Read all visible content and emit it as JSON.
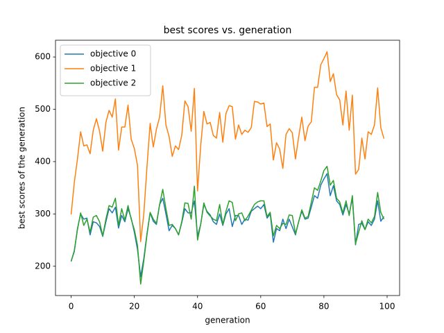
{
  "chart_data": {
    "type": "line",
    "title": "best scores vs. generation",
    "x_label": "generation",
    "y_label": "best scores of the generation",
    "x": [
      0,
      1,
      2,
      3,
      4,
      5,
      6,
      7,
      8,
      9,
      10,
      11,
      12,
      13,
      14,
      15,
      16,
      17,
      18,
      19,
      20,
      21,
      22,
      23,
      24,
      25,
      26,
      27,
      28,
      29,
      30,
      31,
      32,
      33,
      34,
      35,
      36,
      37,
      38,
      39,
      40,
      41,
      42,
      43,
      44,
      45,
      46,
      47,
      48,
      49,
      50,
      51,
      52,
      53,
      54,
      55,
      56,
      57,
      58,
      59,
      60,
      61,
      62,
      63,
      64,
      65,
      66,
      67,
      68,
      69,
      70,
      71,
      72,
      73,
      74,
      75,
      76,
      77,
      78,
      79,
      80,
      81,
      82,
      83,
      84,
      85,
      86,
      87,
      88,
      89,
      90,
      91,
      92,
      93,
      94,
      95,
      96,
      97,
      98,
      99
    ],
    "series": [
      {
        "name": "objective 0",
        "color": "#1f77b4",
        "values": [
          210,
          228,
          272,
          300,
          290,
          292,
          260,
          285,
          283,
          276,
          257,
          285,
          310,
          302,
          313,
          273,
          297,
          285,
          310,
          292,
          265,
          232,
          180,
          215,
          262,
          302,
          286,
          280,
          318,
          330,
          300,
          268,
          278,
          272,
          260,
          283,
          310,
          302,
          302,
          325,
          258,
          280,
          318,
          305,
          298,
          285,
          280,
          300,
          278,
          300,
          310,
          276,
          297,
          297,
          280,
          290,
          288,
          305,
          310,
          315,
          310,
          318,
          292,
          300,
          246,
          272,
          268,
          290,
          272,
          290,
          275,
          260,
          285,
          305,
          290,
          292,
          313,
          335,
          330,
          355,
          367,
          377,
          335,
          354,
          325,
          318,
          298,
          318,
          300,
          330,
          241,
          280,
          282,
          270,
          285,
          278,
          290,
          325,
          286,
          295
        ]
      },
      {
        "name": "objective 1",
        "color": "#ff7f0e",
        "values": [
          299,
          360,
          405,
          457,
          430,
          432,
          415,
          460,
          482,
          458,
          420,
          475,
          498,
          485,
          520,
          422,
          466,
          466,
          508,
          443,
          425,
          393,
          247,
          300,
          390,
          473,
          428,
          462,
          485,
          545,
          470,
          448,
          410,
          430,
          423,
          450,
          516,
          505,
          458,
          540,
          344,
          430,
          496,
          472,
          475,
          450,
          445,
          494,
          437,
          492,
          507,
          505,
          443,
          470,
          452,
          460,
          456,
          465,
          515,
          514,
          510,
          512,
          467,
          472,
          403,
          436,
          424,
          387,
          452,
          463,
          455,
          405,
          447,
          485,
          440,
          468,
          476,
          542,
          542,
          585,
          597,
          610,
          553,
          568,
          528,
          518,
          470,
          535,
          460,
          527,
          376,
          385,
          445,
          405,
          457,
          452,
          470,
          541,
          465,
          444
        ]
      },
      {
        "name": "objective 2",
        "color": "#2ca02c",
        "values": [
          209,
          230,
          270,
          302,
          278,
          290,
          265,
          294,
          297,
          285,
          258,
          290,
          316,
          313,
          330,
          278,
          310,
          288,
          316,
          290,
          270,
          240,
          166,
          210,
          260,
          303,
          290,
          282,
          318,
          347,
          310,
          278,
          280,
          272,
          260,
          285,
          321,
          320,
          290,
          353,
          250,
          280,
          321,
          303,
          296,
          290,
          287,
          318,
          280,
          305,
          325,
          322,
          287,
          300,
          302,
          287,
          296,
          307,
          318,
          323,
          325,
          325,
          295,
          303,
          258,
          278,
          272,
          282,
          280,
          298,
          297,
          262,
          285,
          308,
          292,
          295,
          322,
          350,
          345,
          363,
          383,
          391,
          355,
          364,
          330,
          323,
          302,
          325,
          297,
          335,
          243,
          265,
          287,
          270,
          290,
          283,
          295,
          341,
          303,
          290
        ]
      }
    ],
    "xlim": [
      -4.95,
      103.95
    ],
    "xticks": [
      0,
      20,
      40,
      60,
      80,
      100
    ],
    "ylim": [
      144,
      632
    ],
    "yticks": [
      200,
      300,
      400,
      500,
      600
    ],
    "legend": "upper left",
    "grid": false
  }
}
